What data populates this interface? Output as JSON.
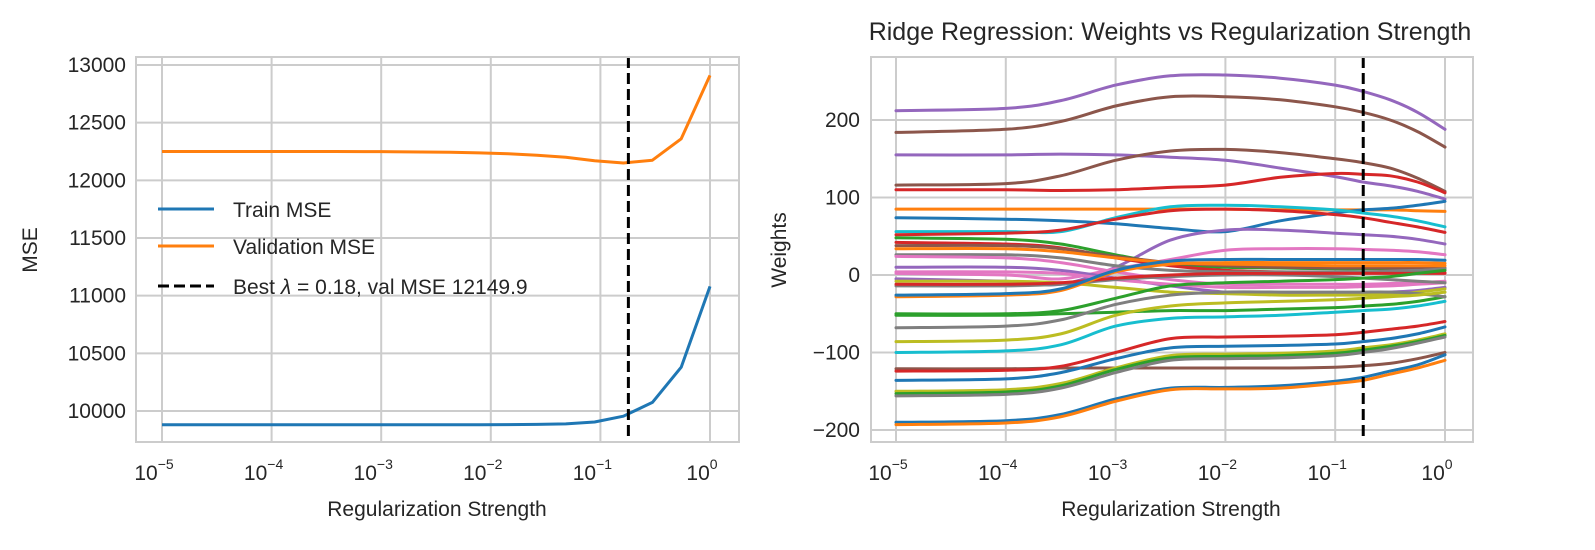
{
  "chart_data": [
    {
      "type": "line",
      "title": "",
      "xlabel": "Regularization Strength",
      "ylabel": "MSE",
      "xscale": "log",
      "xlim": [
        5.6e-06,
        1.8
      ],
      "ylim": [
        9730,
        13050
      ],
      "grid": true,
      "legend_position": "center-left",
      "xticks": [
        {
          "base": "10",
          "exp": "−5",
          "value": 1e-05
        },
        {
          "base": "10",
          "exp": "−4",
          "value": 0.0001
        },
        {
          "base": "10",
          "exp": "−3",
          "value": 0.001
        },
        {
          "base": "10",
          "exp": "−2",
          "value": 0.01
        },
        {
          "base": "10",
          "exp": "−1",
          "value": 0.1
        },
        {
          "base": "10",
          "exp": "0",
          "value": 1
        }
      ],
      "yticks": [
        "10000",
        "10500",
        "11000",
        "11500",
        "12000",
        "12500",
        "13000"
      ],
      "x": [
        1e-05,
        1.83e-05,
        3.36e-05,
        6.16e-05,
        0.000113,
        0.000207,
        0.000379,
        0.000695,
        0.00127,
        0.00234,
        0.00428,
        0.00785,
        0.0144,
        0.0264,
        0.0483,
        0.0886,
        0.162,
        0.298,
        0.546,
        1.0
      ],
      "series": [
        {
          "name": "Train MSE",
          "color": "#1f77b4",
          "values": [
            9880,
            9880,
            9880,
            9880,
            9880,
            9880,
            9880,
            9880,
            9880,
            9880,
            9881,
            9881,
            9882,
            9884,
            9888,
            9905,
            9955,
            10075,
            10380,
            11080
          ]
        },
        {
          "name": "Validation MSE",
          "color": "#ff7f0e",
          "values": [
            12250,
            12250,
            12250,
            12250,
            12250,
            12250,
            12250,
            12249,
            12248,
            12246,
            12243,
            12238,
            12230,
            12218,
            12200,
            12170,
            12150,
            12175,
            12360,
            12910
          ]
        }
      ],
      "vline": {
        "name": "Best λ",
        "x": 0.18,
        "color": "#000000",
        "style": "dashed"
      },
      "legend": [
        {
          "label": "Train MSE",
          "color": "#1f77b4",
          "style": "solid"
        },
        {
          "label": "Validation MSE",
          "color": "#ff7f0e",
          "style": "solid"
        },
        {
          "label_prefix": "Best ",
          "label_lambda": "λ",
          "label_suffix": " = 0.18, val MSE 12149.9",
          "color": "#000000",
          "style": "dashed"
        }
      ]
    },
    {
      "type": "line",
      "title": "Ridge Regression: Weights vs Regularization Strength",
      "xlabel": "Regularization Strength",
      "ylabel": "Weights",
      "xscale": "log",
      "xlim": [
        5.6e-06,
        1.8
      ],
      "ylim": [
        -215,
        282
      ],
      "grid": true,
      "xticks": [
        {
          "base": "10",
          "exp": "−5",
          "value": 1e-05
        },
        {
          "base": "10",
          "exp": "−4",
          "value": 0.0001
        },
        {
          "base": "10",
          "exp": "−3",
          "value": 0.001
        },
        {
          "base": "10",
          "exp": "−2",
          "value": 0.01
        },
        {
          "base": "10",
          "exp": "−1",
          "value": 0.1
        },
        {
          "base": "10",
          "exp": "0",
          "value": 1
        }
      ],
      "yticks": [
        "−200",
        "−100",
        "0",
        "100",
        "200"
      ],
      "x_anchor_decades": [
        -5,
        -4,
        -3.5,
        -3,
        -2.5,
        -2,
        -1.5,
        -1,
        -0.75,
        -0.5,
        -0.25,
        0
      ],
      "vline": {
        "x": 0.18,
        "color": "#000000",
        "style": "dashed"
      },
      "series": [
        {
          "color": "#9467bd",
          "values": [
            212,
            215,
            225,
            245,
            257,
            258,
            254,
            245,
            237,
            226,
            210,
            188
          ]
        },
        {
          "color": "#8c564b",
          "values": [
            184,
            188,
            198,
            218,
            230,
            230,
            226,
            217,
            210,
            200,
            185,
            165
          ]
        },
        {
          "color": "#9467bd",
          "values": [
            155,
            155,
            156,
            155,
            152,
            148,
            138,
            127,
            120,
            115,
            108,
            98
          ]
        },
        {
          "color": "#8c564b",
          "values": [
            116,
            118,
            128,
            148,
            160,
            162,
            158,
            150,
            145,
            138,
            125,
            108
          ]
        },
        {
          "color": "#d62728",
          "values": [
            110,
            110,
            109,
            110,
            113,
            116,
            126,
            131,
            130,
            128,
            120,
            106
          ]
        },
        {
          "color": "#ff7f0e",
          "values": [
            85,
            85,
            85,
            85,
            85,
            85,
            84,
            84,
            84,
            84,
            83,
            82
          ]
        },
        {
          "color": "#1f77b4",
          "values": [
            74,
            72,
            70,
            66,
            60,
            56,
            70,
            80,
            84,
            86,
            90,
            95
          ]
        },
        {
          "color": "#17becf",
          "values": [
            56,
            56,
            56,
            74,
            88,
            90,
            88,
            84,
            80,
            76,
            70,
            62
          ]
        },
        {
          "color": "#d62728",
          "values": [
            52,
            54,
            58,
            72,
            83,
            85,
            83,
            78,
            74,
            68,
            62,
            55
          ]
        },
        {
          "color": "#9467bd",
          "values": [
            -5,
            -8,
            -12,
            10,
            45,
            58,
            58,
            54,
            52,
            50,
            46,
            40
          ]
        },
        {
          "color": "#e377c2",
          "values": [
            2,
            0,
            -5,
            8,
            20,
            32,
            34,
            34,
            33,
            32,
            30,
            26
          ]
        },
        {
          "color": "#2ca02c",
          "values": [
            48,
            46,
            40,
            26,
            14,
            10,
            9,
            8,
            8,
            8,
            8,
            8
          ]
        },
        {
          "color": "#d62728",
          "values": [
            42,
            40,
            35,
            22,
            12,
            6,
            4,
            3,
            3,
            3,
            3,
            3
          ]
        },
        {
          "color": "#8c564b",
          "values": [
            38,
            38,
            34,
            24,
            16,
            12,
            10,
            9,
            9,
            9,
            9,
            9
          ]
        },
        {
          "color": "#ff7f0e",
          "values": [
            34,
            34,
            30,
            22,
            16,
            14,
            13,
            12,
            12,
            12,
            12,
            12
          ]
        },
        {
          "color": "#7f7f7f",
          "values": [
            26,
            26,
            22,
            12,
            6,
            4,
            4,
            4,
            4,
            5,
            6,
            8
          ]
        },
        {
          "color": "#e377c2",
          "values": [
            24,
            22,
            16,
            4,
            -6,
            -12,
            -12,
            -12,
            -12,
            -11,
            -10,
            -8
          ]
        },
        {
          "color": "#9467bd",
          "values": [
            10,
            10,
            6,
            -4,
            -14,
            -22,
            -24,
            -24,
            -23,
            -22,
            -20,
            -16
          ]
        },
        {
          "color": "#e377c2",
          "values": [
            4,
            4,
            2,
            -6,
            -12,
            -16,
            -16,
            -16,
            -15,
            -14,
            -12,
            -10
          ]
        },
        {
          "color": "#bcbd22",
          "values": [
            -8,
            -8,
            -10,
            -16,
            -22,
            -24,
            -26,
            -26,
            -26,
            -25,
            -22,
            -18
          ]
        },
        {
          "color": "#7f7f7f",
          "values": [
            -14,
            -14,
            -12,
            -6,
            -2,
            0,
            0,
            -2,
            -4,
            -6,
            -8,
            -10
          ]
        },
        {
          "color": "#d62728",
          "values": [
            -12,
            -12,
            -10,
            -4,
            0,
            2,
            2,
            2,
            2,
            2,
            2,
            2
          ]
        },
        {
          "color": "#ff7f0e",
          "values": [
            -28,
            -26,
            -20,
            4,
            14,
            16,
            16,
            16,
            16,
            16,
            16,
            15
          ]
        },
        {
          "color": "#1f77b4",
          "values": [
            -26,
            -24,
            -18,
            6,
            18,
            20,
            20,
            20,
            20,
            20,
            20,
            19
          ]
        },
        {
          "color": "#2ca02c",
          "values": [
            -50,
            -50,
            -46,
            -30,
            -14,
            -10,
            -8,
            -6,
            -4,
            -2,
            2,
            6
          ]
        },
        {
          "color": "#2ca02c",
          "values": [
            -52,
            -52,
            -50,
            -48,
            -46,
            -46,
            -44,
            -42,
            -40,
            -38,
            -34,
            -28
          ]
        },
        {
          "color": "#7f7f7f",
          "values": [
            -68,
            -66,
            -58,
            -38,
            -26,
            -22,
            -22,
            -22,
            -22,
            -22,
            -24,
            -28
          ]
        },
        {
          "color": "#bcbd22",
          "values": [
            -86,
            -84,
            -76,
            -52,
            -40,
            -36,
            -34,
            -32,
            -30,
            -28,
            -26,
            -22
          ]
        },
        {
          "color": "#17becf",
          "values": [
            -100,
            -98,
            -90,
            -66,
            -56,
            -54,
            -52,
            -48,
            -46,
            -44,
            -40,
            -34
          ]
        },
        {
          "color": "#8c564b",
          "values": [
            -121,
            -121,
            -120,
            -120,
            -120,
            -120,
            -120,
            -119,
            -117,
            -114,
            -108,
            -100
          ]
        },
        {
          "color": "#d62728",
          "values": [
            -124,
            -123,
            -118,
            -100,
            -82,
            -80,
            -79,
            -77,
            -74,
            -70,
            -66,
            -60
          ]
        },
        {
          "color": "#1f77b4",
          "values": [
            -136,
            -134,
            -126,
            -108,
            -94,
            -92,
            -91,
            -89,
            -86,
            -82,
            -76,
            -67
          ]
        },
        {
          "color": "#bcbd22",
          "values": [
            -150,
            -148,
            -140,
            -120,
            -104,
            -102,
            -101,
            -98,
            -94,
            -90,
            -84,
            -76
          ]
        },
        {
          "color": "#2ca02c",
          "values": [
            -153,
            -151,
            -143,
            -122,
            -107,
            -105,
            -104,
            -101,
            -97,
            -92,
            -86,
            -78
          ]
        },
        {
          "color": "#7f7f7f",
          "values": [
            -156,
            -154,
            -146,
            -126,
            -110,
            -108,
            -107,
            -104,
            -100,
            -95,
            -88,
            -80
          ]
        },
        {
          "color": "#1f77b4",
          "values": [
            -190,
            -188,
            -180,
            -160,
            -146,
            -145,
            -143,
            -137,
            -132,
            -124,
            -116,
            -103
          ]
        },
        {
          "color": "#ff7f0e",
          "values": [
            -193,
            -191,
            -183,
            -163,
            -148,
            -147,
            -146,
            -140,
            -136,
            -128,
            -120,
            -110
          ]
        }
      ]
    }
  ]
}
